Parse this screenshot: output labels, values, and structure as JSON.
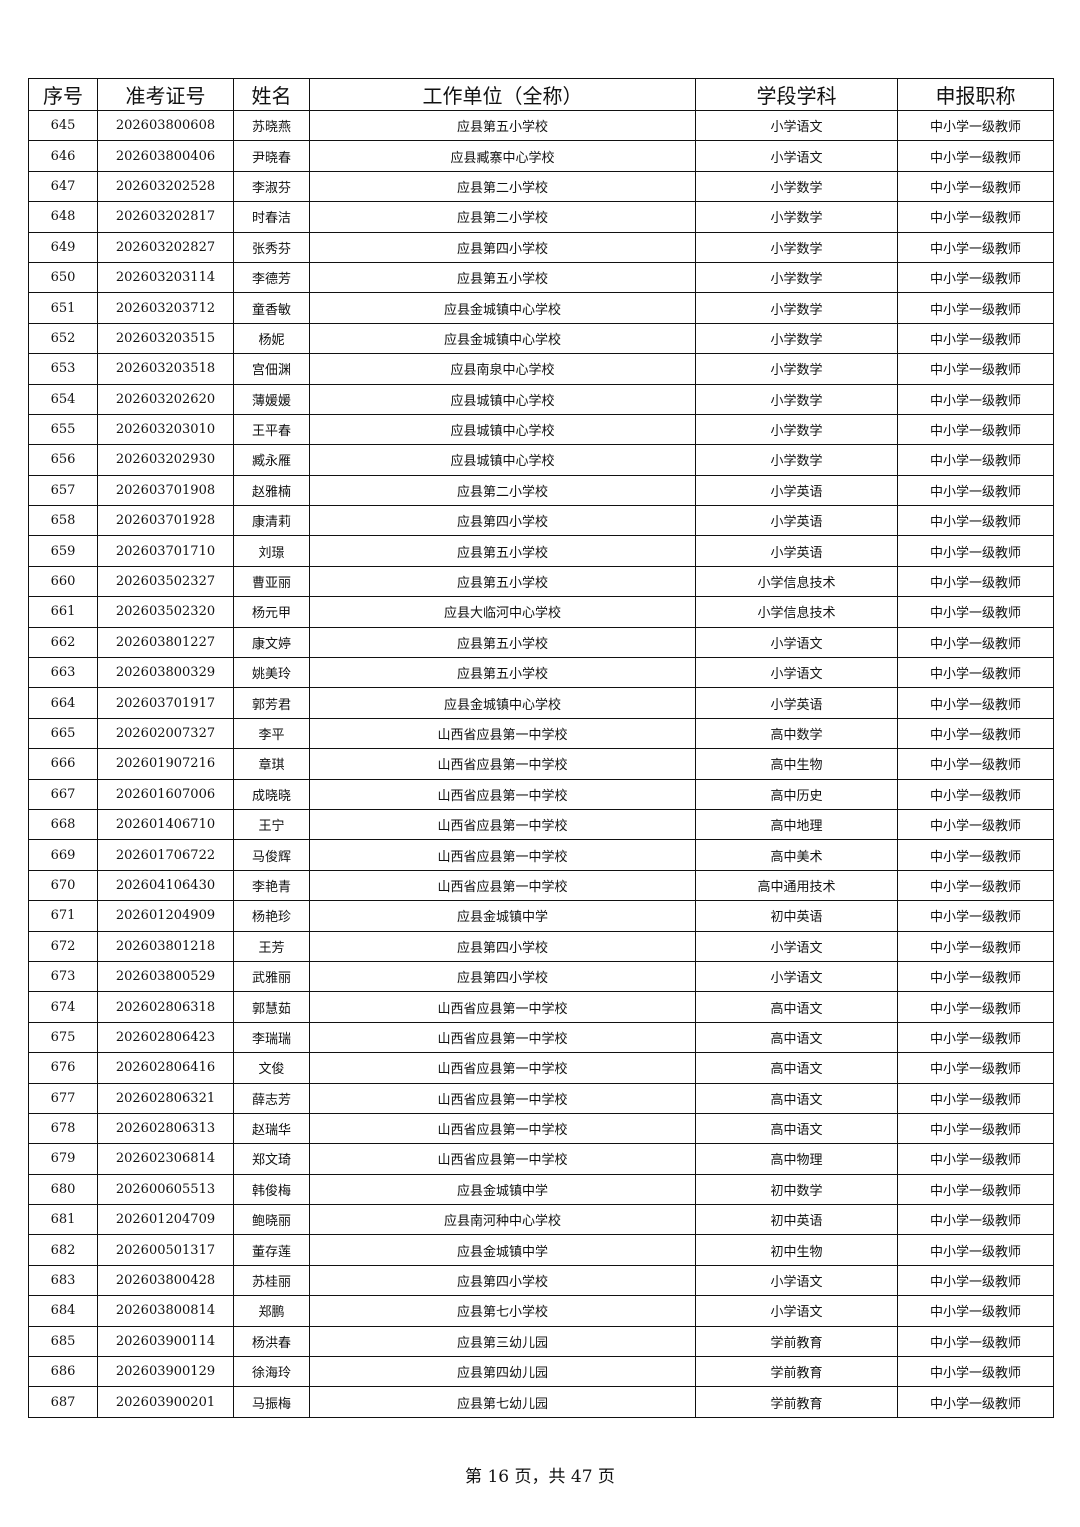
{
  "table": {
    "headers": [
      "序号",
      "准考证号",
      "姓名",
      "工作单位（全称）",
      "学段学科",
      "申报职称"
    ],
    "rows": [
      [
        "645",
        "202603800608",
        "苏晓燕",
        "应县第五小学校",
        "小学语文",
        "中小学一级教师"
      ],
      [
        "646",
        "202603800406",
        "尹晓春",
        "应县臧寨中心学校",
        "小学语文",
        "中小学一级教师"
      ],
      [
        "647",
        "202603202528",
        "李淑芬",
        "应县第二小学校",
        "小学数学",
        "中小学一级教师"
      ],
      [
        "648",
        "202603202817",
        "时春洁",
        "应县第二小学校",
        "小学数学",
        "中小学一级教师"
      ],
      [
        "649",
        "202603202827",
        "张秀芬",
        "应县第四小学校",
        "小学数学",
        "中小学一级教师"
      ],
      [
        "650",
        "202603203114",
        "李德芳",
        "应县第五小学校",
        "小学数学",
        "中小学一级教师"
      ],
      [
        "651",
        "202603203712",
        "童香敏",
        "应县金城镇中心学校",
        "小学数学",
        "中小学一级教师"
      ],
      [
        "652",
        "202603203515",
        "杨妮",
        "应县金城镇中心学校",
        "小学数学",
        "中小学一级教师"
      ],
      [
        "653",
        "202603203518",
        "宫佃渊",
        "应县南泉中心学校",
        "小学数学",
        "中小学一级教师"
      ],
      [
        "654",
        "202603202620",
        "薄媛媛",
        "应县城镇中心学校",
        "小学数学",
        "中小学一级教师"
      ],
      [
        "655",
        "202603203010",
        "王平春",
        "应县城镇中心学校",
        "小学数学",
        "中小学一级教师"
      ],
      [
        "656",
        "202603202930",
        "臧永雁",
        "应县城镇中心学校",
        "小学数学",
        "中小学一级教师"
      ],
      [
        "657",
        "202603701908",
        "赵雅楠",
        "应县第二小学校",
        "小学英语",
        "中小学一级教师"
      ],
      [
        "658",
        "202603701928",
        "康清莉",
        "应县第四小学校",
        "小学英语",
        "中小学一级教师"
      ],
      [
        "659",
        "202603701710",
        "刘璟",
        "应县第五小学校",
        "小学英语",
        "中小学一级教师"
      ],
      [
        "660",
        "202603502327",
        "曹亚丽",
        "应县第五小学校",
        "小学信息技术",
        "中小学一级教师"
      ],
      [
        "661",
        "202603502320",
        "杨元甲",
        "应县大临河中心学校",
        "小学信息技术",
        "中小学一级教师"
      ],
      [
        "662",
        "202603801227",
        "康文婷",
        "应县第五小学校",
        "小学语文",
        "中小学一级教师"
      ],
      [
        "663",
        "202603800329",
        "姚美玲",
        "应县第五小学校",
        "小学语文",
        "中小学一级教师"
      ],
      [
        "664",
        "202603701917",
        "郭芳君",
        "应县金城镇中心学校",
        "小学英语",
        "中小学一级教师"
      ],
      [
        "665",
        "202602007327",
        "李平",
        "山西省应县第一中学校",
        "高中数学",
        "中小学一级教师"
      ],
      [
        "666",
        "202601907216",
        "章琪",
        "山西省应县第一中学校",
        "高中生物",
        "中小学一级教师"
      ],
      [
        "667",
        "202601607006",
        "成晓晓",
        "山西省应县第一中学校",
        "高中历史",
        "中小学一级教师"
      ],
      [
        "668",
        "202601406710",
        "王宁",
        "山西省应县第一中学校",
        "高中地理",
        "中小学一级教师"
      ],
      [
        "669",
        "202601706722",
        "马俊辉",
        "山西省应县第一中学校",
        "高中美术",
        "中小学一级教师"
      ],
      [
        "670",
        "202604106430",
        "李艳青",
        "山西省应县第一中学校",
        "高中通用技术",
        "中小学一级教师"
      ],
      [
        "671",
        "202601204909",
        "杨艳珍",
        "应县金城镇中学",
        "初中英语",
        "中小学一级教师"
      ],
      [
        "672",
        "202603801218",
        "王芳",
        "应县第四小学校",
        "小学语文",
        "中小学一级教师"
      ],
      [
        "673",
        "202603800529",
        "武雅丽",
        "应县第四小学校",
        "小学语文",
        "中小学一级教师"
      ],
      [
        "674",
        "202602806318",
        "郭慧茹",
        "山西省应县第一中学校",
        "高中语文",
        "中小学一级教师"
      ],
      [
        "675",
        "202602806423",
        "李瑞瑞",
        "山西省应县第一中学校",
        "高中语文",
        "中小学一级教师"
      ],
      [
        "676",
        "202602806416",
        "文俊",
        "山西省应县第一中学校",
        "高中语文",
        "中小学一级教师"
      ],
      [
        "677",
        "202602806321",
        "薛志芳",
        "山西省应县第一中学校",
        "高中语文",
        "中小学一级教师"
      ],
      [
        "678",
        "202602806313",
        "赵瑞华",
        "山西省应县第一中学校",
        "高中语文",
        "中小学一级教师"
      ],
      [
        "679",
        "202602306814",
        "郑文琦",
        "山西省应县第一中学校",
        "高中物理",
        "中小学一级教师"
      ],
      [
        "680",
        "202600605513",
        "韩俊梅",
        "应县金城镇中学",
        "初中数学",
        "中小学一级教师"
      ],
      [
        "681",
        "202601204709",
        "鲍晓丽",
        "应县南河种中心学校",
        "初中英语",
        "中小学一级教师"
      ],
      [
        "682",
        "202600501317",
        "董存莲",
        "应县金城镇中学",
        "初中生物",
        "中小学一级教师"
      ],
      [
        "683",
        "202603800428",
        "苏桂丽",
        "应县第四小学校",
        "小学语文",
        "中小学一级教师"
      ],
      [
        "684",
        "202603800814",
        "郑鹏",
        "应县第七小学校",
        "小学语文",
        "中小学一级教师"
      ],
      [
        "685",
        "202603900114",
        "杨洪春",
        "应县第三幼儿园",
        "学前教育",
        "中小学一级教师"
      ],
      [
        "686",
        "202603900129",
        "徐海玲",
        "应县第四幼儿园",
        "学前教育",
        "中小学一级教师"
      ],
      [
        "687",
        "202603900201",
        "马振梅",
        "应县第七幼儿园",
        "学前教育",
        "中小学一级教师"
      ]
    ]
  },
  "footer": {
    "page_label": "第 16 页，共 47 页"
  }
}
